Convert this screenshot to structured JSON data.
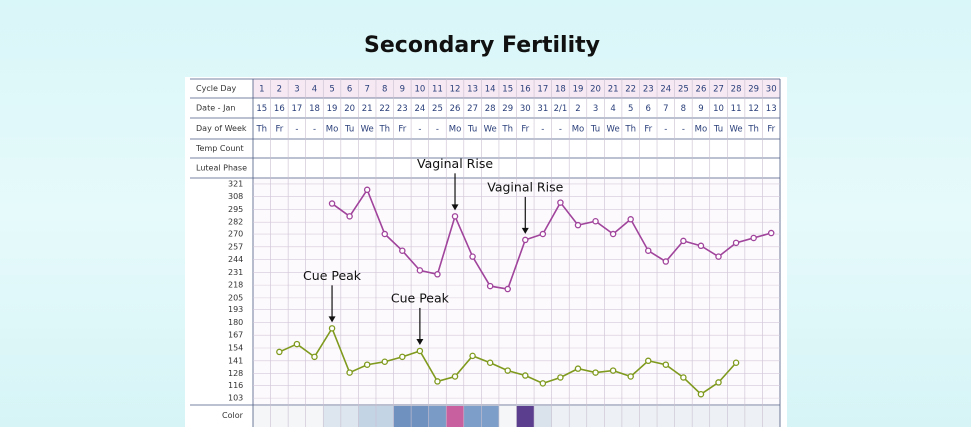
{
  "chart_data": {
    "type": "line",
    "title": "Secondary Fertility",
    "row_labels": [
      "Cycle Day",
      "Date - Jan",
      "Day of Week",
      "Temp Count",
      "Luteal Phase",
      "Color"
    ],
    "categories": [
      "1",
      "2",
      "3",
      "4",
      "5",
      "6",
      "7",
      "8",
      "9",
      "10",
      "11",
      "12",
      "13",
      "14",
      "15",
      "16",
      "17",
      "18",
      "19",
      "20",
      "21",
      "22",
      "23",
      "24",
      "25",
      "26",
      "27",
      "28",
      "29",
      "30"
    ],
    "dates": [
      "15",
      "16",
      "17",
      "18",
      "19",
      "20",
      "21",
      "22",
      "23",
      "24",
      "25",
      "26",
      "27",
      "28",
      "29",
      "30",
      "31",
      "2/1",
      "2",
      "3",
      "4",
      "5",
      "6",
      "7",
      "8",
      "9",
      "10",
      "11",
      "12",
      "13"
    ],
    "weekdays": [
      "Th",
      "Fr",
      "-",
      "-",
      "Mo",
      "Tu",
      "We",
      "Th",
      "Fr",
      "-",
      "-",
      "Mo",
      "Tu",
      "We",
      "Th",
      "Fr",
      "-",
      "-",
      "Mo",
      "Tu",
      "We",
      "Th",
      "Fr",
      "-",
      "-",
      "Mo",
      "Tu",
      "We",
      "Th",
      "Fr"
    ],
    "series": [
      {
        "color": "#a0449c",
        "values": [
          null,
          null,
          null,
          null,
          301,
          288,
          315,
          270,
          253,
          233,
          229,
          288,
          247,
          217,
          214,
          264,
          270,
          302,
          279,
          283,
          270,
          285,
          253,
          242,
          263,
          258,
          247,
          261,
          266,
          271
        ]
      },
      {
        "color": "#7f9a1e",
        "values": [
          null,
          150,
          158,
          145,
          174,
          129,
          137,
          140,
          145,
          151,
          120,
          125,
          146,
          139,
          131,
          126,
          118,
          124,
          133,
          129,
          131,
          125,
          141,
          137,
          124,
          107,
          119,
          139,
          null,
          null
        ]
      }
    ],
    "annotations": [
      {
        "text": "Cue Peak",
        "series": 1,
        "category": 4
      },
      {
        "text": "Cue Peak",
        "series": 1,
        "category": 9
      },
      {
        "text": "Vaginal Rise",
        "series": 0,
        "category": 11
      },
      {
        "text": "Vaginal Rise",
        "series": 0,
        "category": 15
      }
    ],
    "color_row": [
      "#f4f6f8",
      "#f4f6f8",
      "#f4f6f8",
      "#f4f6f8",
      "#dde6ee",
      "#dde6ee",
      "#c3d4e5",
      "#c3d4e5",
      "#6f91bf",
      "#6f91bf",
      "#7a9bc6",
      "#c85f9f",
      "#7d9ec8",
      "#7d9ec8",
      "#f4f6f8",
      "#5b3f8e",
      "#dae3ec",
      "#edf1f5",
      "#edf1f5",
      "#edf1f5",
      "#edf1f5",
      "#edf1f5",
      "#edf1f5",
      "#edf1f5",
      "#edf1f5",
      "#edf1f5",
      "#edf1f5",
      "#edf1f5",
      "#edf1f5",
      "#edf1f5"
    ],
    "ylim": [
      96,
      327
    ],
    "yticks": [
      103,
      116,
      128,
      141,
      154,
      167,
      180,
      193,
      205,
      218,
      231,
      244,
      257,
      270,
      282,
      295,
      308,
      321
    ],
    "grid": true
  }
}
